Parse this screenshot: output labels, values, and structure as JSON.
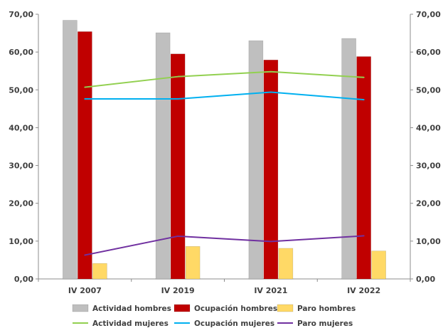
{
  "chart_data": {
    "type": "bar",
    "categories": [
      "IV 2007",
      "IV 2019",
      "IV 2021",
      "IV 2022"
    ],
    "ylim": [
      0,
      70
    ],
    "yticks": [
      "0,00",
      "10,00",
      "20,00",
      "30,00",
      "40,00",
      "50,00",
      "60,00",
      "70,00"
    ],
    "ytick_values": [
      0,
      10,
      20,
      30,
      40,
      50,
      60,
      70
    ],
    "secondary_axis": true,
    "grid": false,
    "legend_position": "bottom",
    "bar_series": [
      {
        "name": "Actividad hombres",
        "color": "#bfbfbf",
        "values": [
          68.4,
          65.1,
          63.0,
          63.6
        ]
      },
      {
        "name": "Ocupación hombres",
        "color": "#c00000",
        "values": [
          65.4,
          59.5,
          57.9,
          58.8
        ]
      },
      {
        "name": "Paro hombres",
        "color": "#ffd966",
        "values": [
          4.1,
          8.6,
          8.1,
          7.4
        ]
      }
    ],
    "line_series": [
      {
        "name": "Actividad mujeres",
        "color": "#92d050",
        "values": [
          50.7,
          53.5,
          54.8,
          53.3
        ]
      },
      {
        "name": "Ocupación mujeres",
        "color": "#00b0f0",
        "values": [
          47.6,
          47.6,
          49.4,
          47.4
        ]
      },
      {
        "name": "Paro mujeres",
        "color": "#7030a0",
        "values": [
          6.3,
          11.3,
          9.9,
          11.4
        ]
      }
    ]
  }
}
